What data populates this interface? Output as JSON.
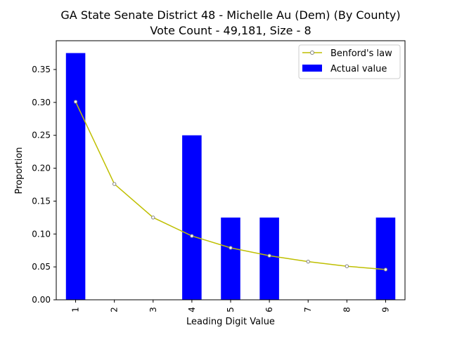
{
  "chart_data": {
    "type": "bar",
    "title_line1": "GA State Senate District 48 - Michelle Au (Dem) (By County)",
    "title_line2": "Vote Count - 49,181, Size - 8",
    "xlabel": "Leading Digit Value",
    "ylabel": "Proportion",
    "categories": [
      "1",
      "2",
      "3",
      "4",
      "5",
      "6",
      "7",
      "8",
      "9"
    ],
    "ylim": [
      0,
      0.39375
    ],
    "yticks": [
      "0.00",
      "0.05",
      "0.10",
      "0.15",
      "0.20",
      "0.25",
      "0.30",
      "0.35"
    ],
    "grid": false,
    "legend_position": "upper right",
    "series": [
      {
        "name": "Benford's law",
        "kind": "line",
        "color": "#bfbf00",
        "marker_color": "#808080",
        "values": [
          0.301,
          0.176,
          0.125,
          0.097,
          0.079,
          0.067,
          0.058,
          0.051,
          0.046
        ]
      },
      {
        "name": "Actual value",
        "kind": "bar",
        "color": "#0000ff",
        "values": [
          0.375,
          0,
          0,
          0.25,
          0.125,
          0.125,
          0,
          0,
          0.125
        ]
      }
    ]
  }
}
